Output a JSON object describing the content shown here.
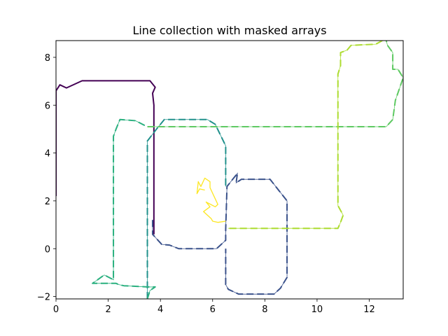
{
  "chart_data": {
    "type": "line",
    "title": "Line collection with masked arrays",
    "xlabel": "",
    "ylabel": "",
    "xlim": [
      0,
      13.3
    ],
    "ylim": [
      -2.1,
      8.7
    ],
    "xticks": [
      0,
      2,
      4,
      6,
      8,
      10,
      12
    ],
    "yticks": [
      -2,
      0,
      2,
      4,
      6,
      8
    ],
    "grid": false,
    "legend": "none",
    "series": [
      {
        "color": "#440154",
        "style": "solid-thick",
        "points": [
          [
            0.0,
            2.2
          ],
          [
            0.0,
            6.6
          ],
          [
            0.15,
            6.85
          ],
          [
            0.4,
            6.72
          ],
          [
            1.0,
            7.02
          ],
          [
            3.6,
            7.02
          ],
          [
            3.8,
            6.75
          ],
          [
            3.7,
            6.5
          ],
          [
            3.75,
            6.0
          ],
          [
            3.75,
            0.6
          ]
        ]
      },
      {
        "color": "#3b528b",
        "style": "dashed",
        "points": [
          [
            3.7,
            1.2
          ],
          [
            3.7,
            0.6
          ],
          [
            4.05,
            0.18
          ],
          [
            4.35,
            0.15
          ],
          [
            4.7,
            0.0
          ],
          [
            6.15,
            0.0
          ],
          [
            6.5,
            0.35
          ],
          [
            6.5,
            0.8
          ],
          [
            6.55,
            2.6
          ],
          [
            6.95,
            3.15
          ],
          [
            6.9,
            2.75
          ],
          [
            7.1,
            2.9
          ],
          [
            8.2,
            2.9
          ],
          [
            8.85,
            2.0
          ],
          [
            8.85,
            -1.2
          ],
          [
            8.6,
            -1.65
          ],
          [
            8.35,
            -1.9
          ],
          [
            7.0,
            -1.9
          ],
          [
            6.6,
            -1.7
          ],
          [
            6.5,
            -1.5
          ],
          [
            6.5,
            0.0
          ]
        ]
      },
      {
        "color": "#21918c",
        "style": "dashed",
        "points": [
          [
            3.5,
            -2.1
          ],
          [
            3.5,
            4.5
          ],
          [
            3.85,
            5.0
          ],
          [
            4.15,
            5.4
          ],
          [
            5.8,
            5.4
          ],
          [
            6.1,
            5.2
          ],
          [
            6.5,
            4.3
          ],
          [
            6.5,
            2.6
          ]
        ]
      },
      {
        "color": "#2ab07f",
        "style": "dashed",
        "points": [
          [
            3.4,
            5.15
          ],
          [
            3.05,
            5.35
          ],
          [
            2.45,
            5.4
          ],
          [
            2.3,
            5.0
          ],
          [
            2.2,
            4.7
          ],
          [
            2.2,
            -1.3
          ],
          [
            1.85,
            -1.1
          ],
          [
            1.4,
            -1.45
          ],
          [
            2.3,
            -1.45
          ],
          [
            2.4,
            -1.5
          ],
          [
            2.6,
            -1.55
          ],
          [
            3.5,
            -1.6
          ],
          [
            3.8,
            -1.6
          ],
          [
            3.6,
            -1.75
          ],
          [
            3.5,
            -2.1
          ]
        ]
      },
      {
        "color": "#5ec962",
        "style": "dashed",
        "points": [
          [
            3.5,
            5.1
          ],
          [
            12.65,
            5.1
          ],
          [
            12.9,
            5.4
          ],
          [
            13.0,
            6.2
          ],
          [
            13.3,
            7.15
          ],
          [
            13.1,
            7.5
          ],
          [
            12.9,
            7.5
          ],
          [
            12.9,
            8.2
          ],
          [
            12.7,
            8.5
          ],
          [
            12.65,
            8.7
          ]
        ]
      },
      {
        "color": "#addc30",
        "style": "dashed",
        "points": [
          [
            12.5,
            8.7
          ],
          [
            12.25,
            8.55
          ],
          [
            11.3,
            8.5
          ],
          [
            11.15,
            8.3
          ],
          [
            10.9,
            8.2
          ],
          [
            10.9,
            7.65
          ],
          [
            10.8,
            7.3
          ],
          [
            10.8,
            1.8
          ],
          [
            11.0,
            1.4
          ],
          [
            10.9,
            1.1
          ],
          [
            10.8,
            0.85
          ],
          [
            6.6,
            0.85
          ]
        ]
      },
      {
        "color": "#fde725",
        "style": "solid",
        "points": [
          [
            6.5,
            1.15
          ],
          [
            6.2,
            1.1
          ],
          [
            6.0,
            1.15
          ],
          [
            5.95,
            1.25
          ],
          [
            5.65,
            1.55
          ],
          [
            5.9,
            1.75
          ],
          [
            5.75,
            1.95
          ],
          [
            6.1,
            1.75
          ],
          [
            6.2,
            1.85
          ],
          [
            5.9,
            2.55
          ],
          [
            5.9,
            2.8
          ],
          [
            5.7,
            2.95
          ],
          [
            5.55,
            2.6
          ],
          [
            5.45,
            2.8
          ],
          [
            5.4,
            2.3
          ],
          [
            5.5,
            2.5
          ],
          [
            5.7,
            2.45
          ]
        ]
      }
    ]
  }
}
